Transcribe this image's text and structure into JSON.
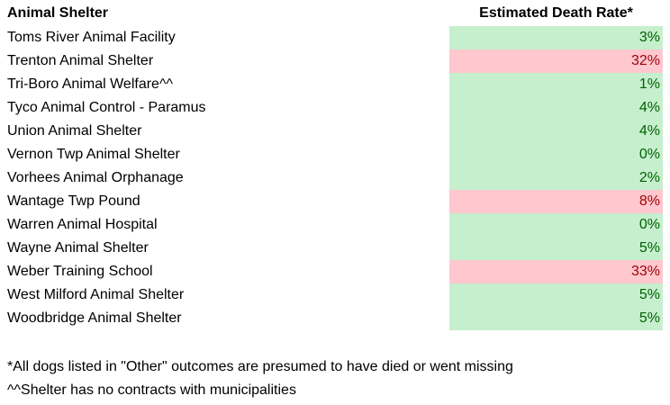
{
  "headers": {
    "name": "Animal Shelter",
    "rate": "Estimated Death Rate*"
  },
  "colors": {
    "good_fill": "#C6EFCE",
    "good_text": "#006100",
    "bad_fill": "#FFC7CE",
    "bad_text": "#9C0006"
  },
  "rows": [
    {
      "name": "Toms River Animal Facility",
      "rate": "3%",
      "status": "good"
    },
    {
      "name": "Trenton Animal Shelter",
      "rate": "32%",
      "status": "bad"
    },
    {
      "name": "Tri-Boro Animal Welfare^^",
      "rate": "1%",
      "status": "good"
    },
    {
      "name": "Tyco Animal Control - Paramus",
      "rate": "4%",
      "status": "good"
    },
    {
      "name": "Union Animal Shelter",
      "rate": "4%",
      "status": "good"
    },
    {
      "name": "Vernon Twp Animal Shelter",
      "rate": "0%",
      "status": "good"
    },
    {
      "name": "Vorhees Animal Orphanage",
      "rate": "2%",
      "status": "good"
    },
    {
      "name": "Wantage Twp Pound",
      "rate": "8%",
      "status": "bad"
    },
    {
      "name": "Warren Animal Hospital",
      "rate": "0%",
      "status": "good"
    },
    {
      "name": "Wayne Animal Shelter",
      "rate": "5%",
      "status": "good"
    },
    {
      "name": "Weber Training School",
      "rate": "33%",
      "status": "bad"
    },
    {
      "name": "West Milford Animal Shelter",
      "rate": "5%",
      "status": "good"
    },
    {
      "name": "Woodbridge Animal Shelter",
      "rate": "5%",
      "status": "good"
    }
  ],
  "notes": [
    "*All dogs listed in \"Other\" outcomes are presumed to have died or went missing",
    "^^Shelter has no contracts with municipalities"
  ]
}
